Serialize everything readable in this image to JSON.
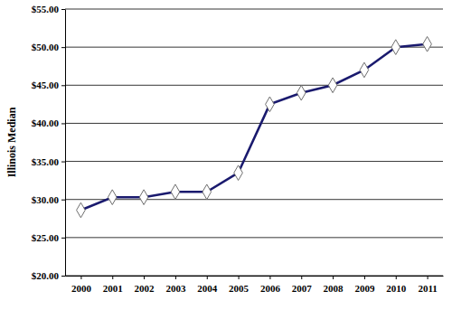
{
  "chart_data": {
    "type": "line",
    "y_label": "Illinois Median",
    "categories": [
      "2000",
      "2001",
      "2002",
      "2003",
      "2004",
      "2005",
      "2006",
      "2007",
      "2008",
      "2009",
      "2010",
      "2011"
    ],
    "values": [
      28.6,
      30.3,
      30.3,
      31.0,
      31.0,
      33.5,
      42.5,
      44.0,
      45.0,
      47.0,
      50.0,
      50.4
    ],
    "color": "#1a1a6e",
    "marker": "diamond",
    "line_style": "solid",
    "ylim": [
      20,
      55
    ],
    "yticks": [
      {
        "value": 20,
        "label": "$20.00"
      },
      {
        "value": 25,
        "label": "$25.00"
      },
      {
        "value": 30,
        "label": "$30.00"
      },
      {
        "value": 35,
        "label": "$35.00"
      },
      {
        "value": 40,
        "label": "$40.00"
      },
      {
        "value": 45,
        "label": "$45.00"
      },
      {
        "value": 50,
        "label": "$50.00"
      },
      {
        "value": 55,
        "label": "$55.00"
      }
    ],
    "grid": true
  }
}
